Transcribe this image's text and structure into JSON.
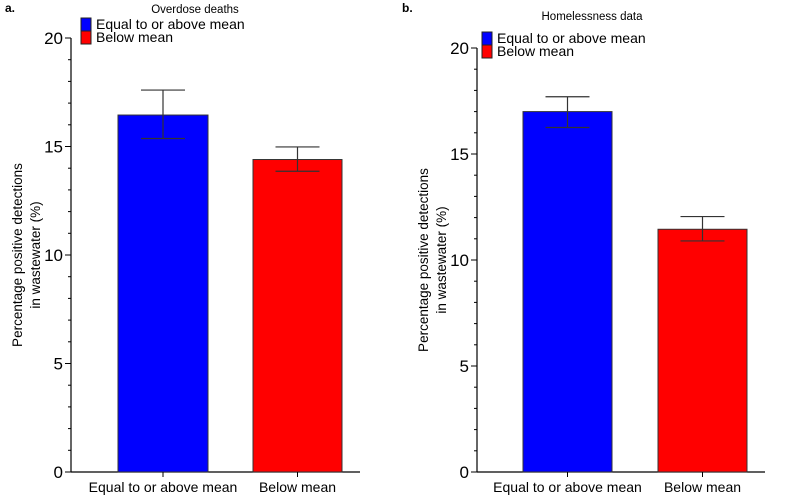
{
  "chart_data": [
    {
      "type": "bar",
      "panel_label": "a.",
      "title": "Overdose deaths",
      "ylabel": [
        "Percentage positive detections",
        "in wastewater (%)"
      ],
      "xlabel": "",
      "categories": [
        "Equal to or above mean",
        "Below mean"
      ],
      "values": [
        16.45,
        14.4
      ],
      "error_upper": [
        17.6,
        14.98
      ],
      "error_lower": [
        15.37,
        13.86
      ],
      "colors": [
        "#0000ff",
        "#ff0000"
      ],
      "ylim": [
        0,
        20
      ],
      "yticks": [
        0,
        5,
        10,
        15,
        20
      ],
      "legend": {
        "placement": "top-left",
        "entries": [
          "Equal to or above mean",
          "Below mean"
        ]
      },
      "grid": false
    },
    {
      "type": "bar",
      "panel_label": "b.",
      "title": "Homelessness data",
      "ylabel": [
        "Percentage positive detections",
        "in wastewater (%)"
      ],
      "xlabel": "",
      "categories": [
        "Equal to or above mean",
        "Below mean"
      ],
      "values": [
        17.0,
        11.45
      ],
      "error_upper": [
        17.7,
        12.05
      ],
      "error_lower": [
        16.25,
        10.9
      ],
      "colors": [
        "#0000ff",
        "#ff0000"
      ],
      "ylim": [
        0,
        20
      ],
      "yticks": [
        0,
        5,
        10,
        15,
        20
      ],
      "legend": {
        "placement": "top-left",
        "entries": [
          "Equal to or above mean",
          "Below mean"
        ]
      },
      "grid": false
    }
  ]
}
